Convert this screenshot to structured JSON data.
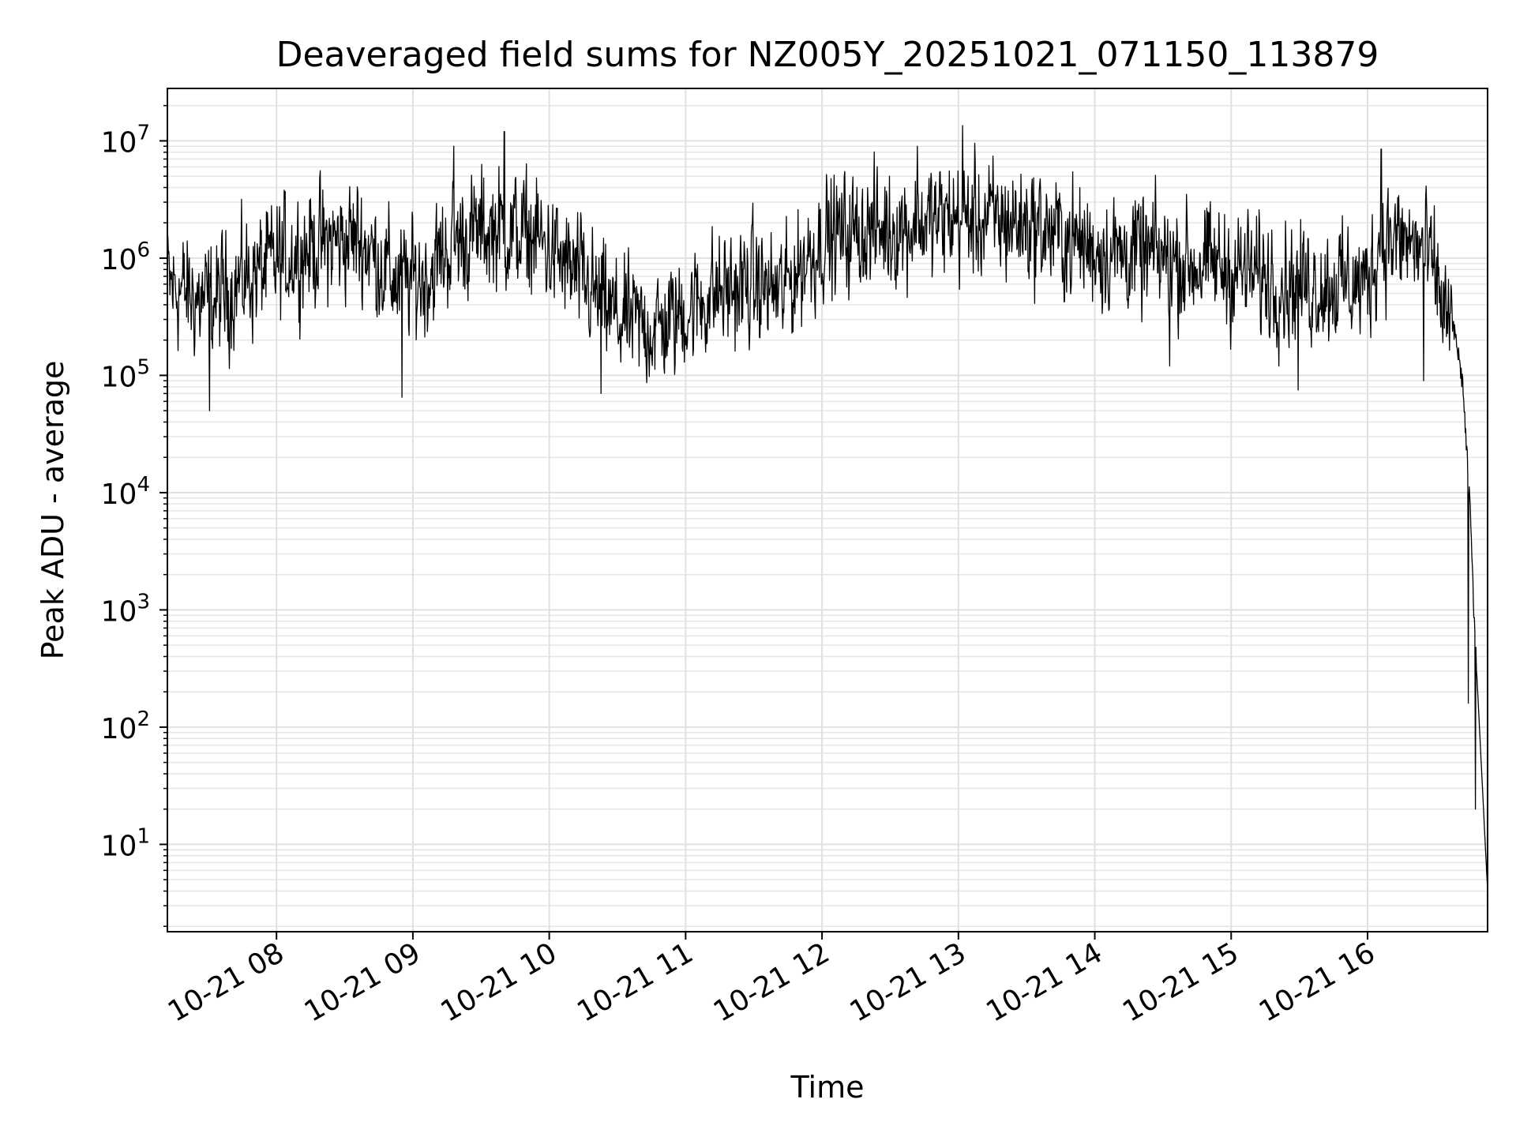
{
  "chart_data": {
    "type": "line",
    "title": "Deaveraged field sums for NZ005Y_20251021_071150_113879",
    "xlabel": "Time",
    "ylabel": "Peak ADU - average",
    "yscale": "log",
    "ylim": [
      1.8,
      28000000
    ],
    "xlim_hours": [
      7.2,
      16.88
    ],
    "grid": true,
    "x_ticks": [
      {
        "hour": 8,
        "label": "10-21 08"
      },
      {
        "hour": 9,
        "label": "10-21 09"
      },
      {
        "hour": 10,
        "label": "10-21 10"
      },
      {
        "hour": 11,
        "label": "10-21 11"
      },
      {
        "hour": 12,
        "label": "10-21 12"
      },
      {
        "hour": 13,
        "label": "10-21 13"
      },
      {
        "hour": 14,
        "label": "10-21 14"
      },
      {
        "hour": 15,
        "label": "10-21 15"
      },
      {
        "hour": 16,
        "label": "10-21 16"
      }
    ],
    "y_ticks": [
      {
        "exp": 1,
        "base": "10",
        "sup": "1"
      },
      {
        "exp": 2,
        "base": "10",
        "sup": "2"
      },
      {
        "exp": 3,
        "base": "10",
        "sup": "3"
      },
      {
        "exp": 4,
        "base": "10",
        "sup": "4"
      },
      {
        "exp": 5,
        "base": "10",
        "sup": "5"
      },
      {
        "exp": 6,
        "base": "10",
        "sup": "6"
      },
      {
        "exp": 7,
        "base": "10",
        "sup": "7"
      }
    ],
    "series": [
      {
        "name": "deaveraged field sum",
        "color": "#000000",
        "noise_band_log10": 0.45,
        "envelope_hours": [
          7.2,
          7.5,
          7.8,
          8.2,
          8.6,
          8.9,
          9.1,
          9.3,
          9.6,
          9.9,
          10.2,
          10.5,
          10.8,
          11.2,
          11.5,
          11.7,
          12.0,
          12.5,
          13.0,
          13.5,
          14.0,
          14.5,
          15.0,
          15.5,
          16.0,
          16.1,
          16.4,
          16.5,
          16.55,
          16.6,
          16.65,
          16.7,
          16.72,
          16.76,
          16.78,
          16.8,
          16.88
        ],
        "envelope_values": [
          600000,
          400000,
          700000,
          1200000,
          1500000,
          600000,
          700000,
          1400000,
          1800000,
          1500000,
          700000,
          300000,
          250000,
          500000,
          600000,
          500000,
          1500000,
          1800000,
          2200000,
          2000000,
          1200000,
          1000000,
          800000,
          600000,
          600000,
          1500000,
          1200000,
          700000,
          400000,
          300000,
          200000,
          80000,
          30000,
          5000,
          1000,
          300,
          4
        ],
        "spikes": [
          {
            "hour": 9.67,
            "value": 12000000
          },
          {
            "hour": 9.3,
            "value": 9000000
          },
          {
            "hour": 13.03,
            "value": 13500000
          },
          {
            "hour": 16.1,
            "value": 8500000
          },
          {
            "hour": 12.7,
            "value": 9000000
          },
          {
            "hour": 7.51,
            "value": 50000
          },
          {
            "hour": 8.92,
            "value": 65000
          },
          {
            "hour": 10.38,
            "value": 70000
          },
          {
            "hour": 14.55,
            "value": 120000
          },
          {
            "hour": 15.49,
            "value": 75000
          },
          {
            "hour": 16.41,
            "value": 90000
          },
          {
            "hour": 16.79,
            "value": 20
          },
          {
            "hour": 16.74,
            "value": 160
          }
        ]
      }
    ]
  }
}
